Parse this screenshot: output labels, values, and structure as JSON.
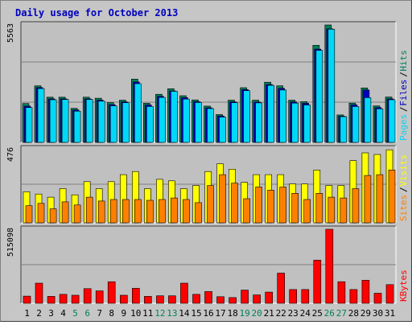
{
  "chart_data": {
    "type": "bar",
    "title": "Daily usage for October 2013",
    "categories": [
      "1",
      "2",
      "3",
      "4",
      "5",
      "6",
      "7",
      "8",
      "9",
      "10",
      "11",
      "12",
      "13",
      "14",
      "15",
      "16",
      "17",
      "18",
      "19",
      "20",
      "21",
      "22",
      "23",
      "24",
      "25",
      "26",
      "27",
      "28",
      "29",
      "30",
      "31"
    ],
    "weekend_days": [
      "5",
      "6",
      "12",
      "13",
      "19",
      "20",
      "26",
      "27"
    ],
    "panels": [
      {
        "name": "hits-files-pages",
        "ymax_label": "5563",
        "ymax": 5563,
        "legend": [
          "Pages",
          "/",
          "Files",
          "/",
          "Hits"
        ],
        "series": [
          {
            "name": "Hits",
            "color": "#00805c",
            "values": [
              1840,
              2680,
              2140,
              2140,
              1610,
              2140,
              2090,
              1880,
              2000,
              3000,
              1850,
              2280,
              2540,
              2210,
              2010,
              1720,
              1320,
              2000,
              2590,
              2000,
              2850,
              2680,
              2000,
              1930,
              4600,
              5563,
              1300,
              1860,
              2580,
              1730,
              2150
            ]
          },
          {
            "name": "Files",
            "color": "#0000c0",
            "values": [
              1720,
              2600,
              2060,
              2060,
              1540,
              2060,
              2000,
              1790,
              1920,
              2860,
              1770,
              2180,
              2440,
              2120,
              1930,
              1640,
              1250,
              1920,
              2500,
              1910,
              2740,
              2560,
              1920,
              1850,
              4420,
              5380,
              1240,
              1780,
              2480,
              1650,
              2060
            ]
          },
          {
            "name": "Pages",
            "color": "#00d8f8",
            "values": [
              1650,
              2550,
              2020,
              2030,
              1480,
              2030,
              1950,
              1730,
              1880,
              2780,
              1700,
              2130,
              2420,
              2050,
              1890,
              1600,
              1200,
              1880,
              2450,
              1870,
              2700,
              2480,
              1860,
              1770,
              4360,
              5360,
              1220,
              1700,
              2120,
              1590,
              2020
            ]
          }
        ]
      },
      {
        "name": "visits-sites",
        "ymax_label": "476",
        "ymax": 476,
        "legend": [
          "Sites",
          "/",
          "Visits"
        ],
        "series": [
          {
            "name": "Visits",
            "color": "#ffff00",
            "values": [
              200,
              185,
              165,
              220,
              180,
              265,
              220,
              265,
              310,
              330,
              220,
              280,
              270,
              220,
              240,
              330,
              380,
              345,
              260,
              310,
              310,
              310,
              250,
              250,
              340,
              240,
              240,
              400,
              450,
              440,
              470
            ]
          },
          {
            "name": "Sites",
            "color": "#ff8000",
            "values": [
              110,
              125,
              90,
              135,
              115,
              165,
              140,
              150,
              150,
              150,
              145,
              150,
              160,
              150,
              130,
              240,
              310,
              255,
              155,
              230,
              210,
              230,
              190,
              150,
              190,
              165,
              160,
              220,
              305,
              310,
              340
            ]
          }
        ]
      },
      {
        "name": "kbytes",
        "ymax_label": "515098",
        "ymax": 515098,
        "legend": [
          "KBytes"
        ],
        "series": [
          {
            "name": "KBytes",
            "color": "#ff0000",
            "values": [
              50000,
              140000,
              48000,
              62000,
              56000,
              102000,
              86000,
              150000,
              56000,
              104000,
              48000,
              52000,
              52000,
              140000,
              62000,
              82000,
              46000,
              40000,
              92000,
              58000,
              78000,
              210000,
              96000,
              96000,
              300000,
              515098,
              150000,
              96000,
              160000,
              70000,
              130000
            ]
          }
        ]
      }
    ]
  },
  "colors": {
    "title_text": "#0000c0",
    "plot_bg": "#c0c0c0",
    "gridline": "#808080",
    "weekday_label": "#000000",
    "weekend_label": "#00805c"
  }
}
